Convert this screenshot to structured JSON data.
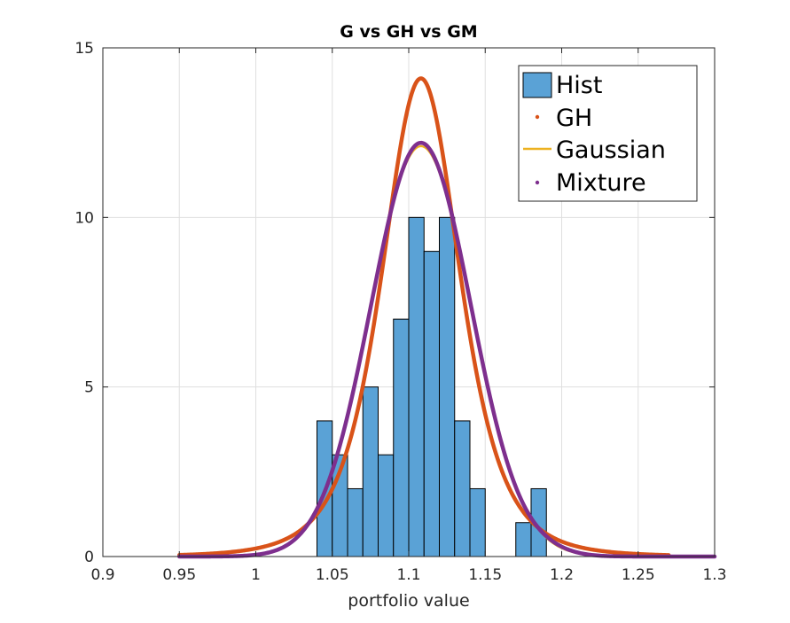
{
  "chart_data": {
    "type": "bar",
    "title": "G vs GH vs GM",
    "xlabel": "portfolio value",
    "ylabel": "",
    "xlim": [
      0.9,
      1.3
    ],
    "ylim": [
      0,
      15
    ],
    "xticks": [
      "0.9",
      "0.95",
      "1",
      "1.05",
      "1.1",
      "1.15",
      "1.2",
      "1.25",
      "1.3"
    ],
    "yticks": [
      "0",
      "5",
      "10",
      "15"
    ],
    "grid": true,
    "legend_position": "top-right",
    "histogram": {
      "name": "Hist",
      "bin_edges": [
        1.04,
        1.05,
        1.06,
        1.07,
        1.08,
        1.09,
        1.1,
        1.11,
        1.12,
        1.13,
        1.14,
        1.15,
        1.16,
        1.17,
        1.18,
        1.19,
        1.2
      ],
      "values": [
        4,
        3,
        2,
        5,
        3,
        7,
        10,
        9,
        10,
        4,
        2,
        0,
        0,
        1,
        2,
        0
      ],
      "color": "#5aa2d6"
    },
    "series": [
      {
        "name": "GH",
        "style": "dots",
        "color": "#d95319",
        "mean": 1.108,
        "peak": 14.1,
        "x_range": [
          0.95,
          1.27
        ]
      },
      {
        "name": "Gaussian",
        "style": "line",
        "color": "#edb120",
        "mean": 1.108,
        "peak": 12.1,
        "x_range": [
          0.95,
          1.3
        ]
      },
      {
        "name": "Mixture",
        "style": "dots",
        "color": "#7e2f8e",
        "mean": 1.108,
        "peak": 12.2,
        "x_range": [
          0.95,
          1.3
        ]
      }
    ]
  }
}
